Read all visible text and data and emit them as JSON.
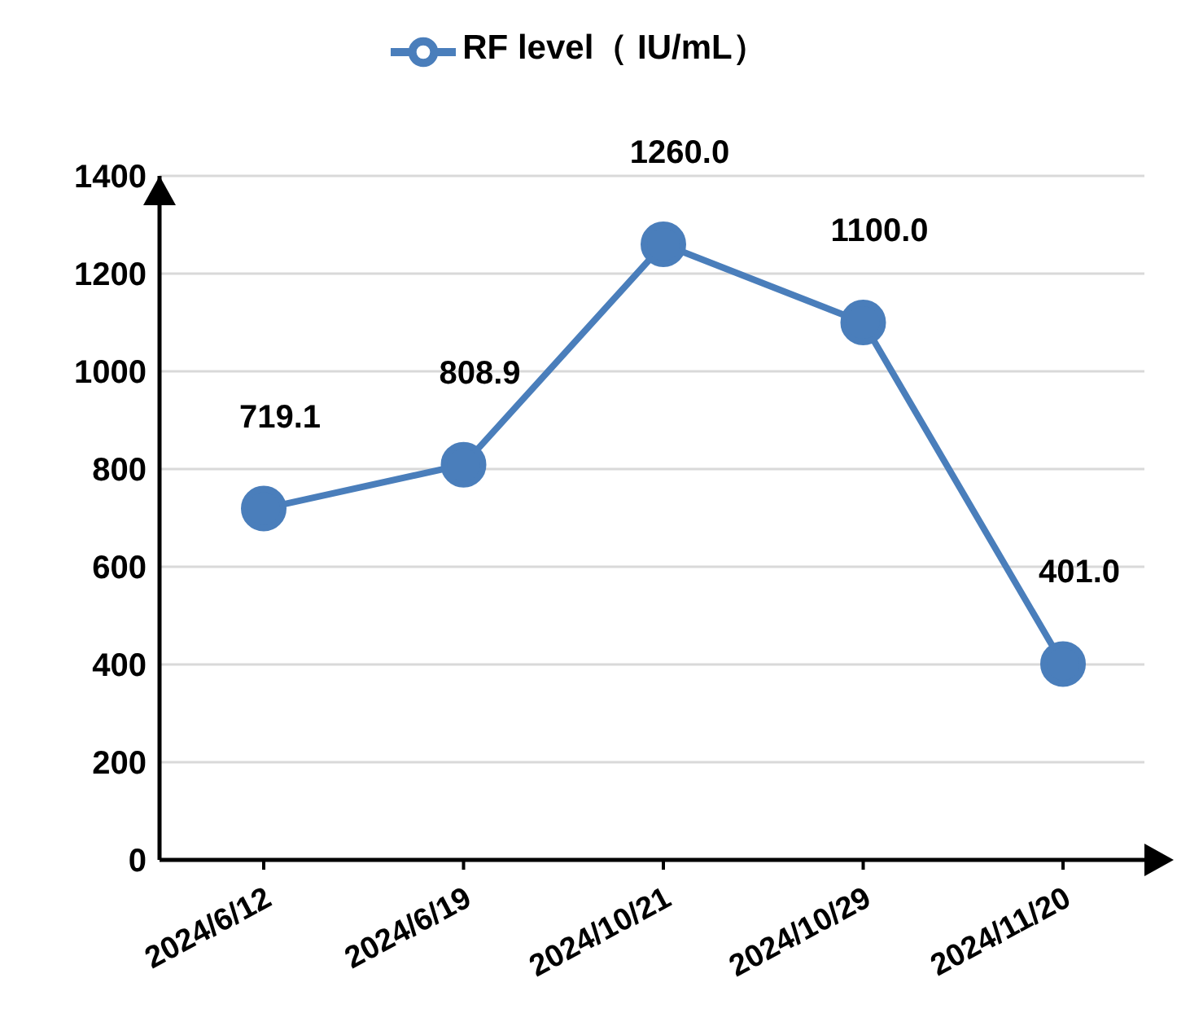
{
  "chart_data": {
    "type": "line",
    "categories": [
      "2024/6/12",
      "2024/6/19",
      "2024/10/21",
      "2024/10/29",
      "2024/11/20"
    ],
    "series": [
      {
        "name": "RF level（ IU/mL）",
        "color": "#4a7ebb",
        "values": [
          719.1,
          808.9,
          1260.0,
          1100.0,
          401.0
        ],
        "value_labels": [
          "719.1",
          "808.9",
          "1260.0",
          "1100.0",
          "401.0"
        ]
      }
    ],
    "ylim": [
      0,
      1400
    ],
    "yticks": [
      0,
      200,
      400,
      600,
      800,
      1000,
      1200,
      1400
    ],
    "grid": "y",
    "legend": "top",
    "marker": "circle",
    "line_style": "solid"
  }
}
